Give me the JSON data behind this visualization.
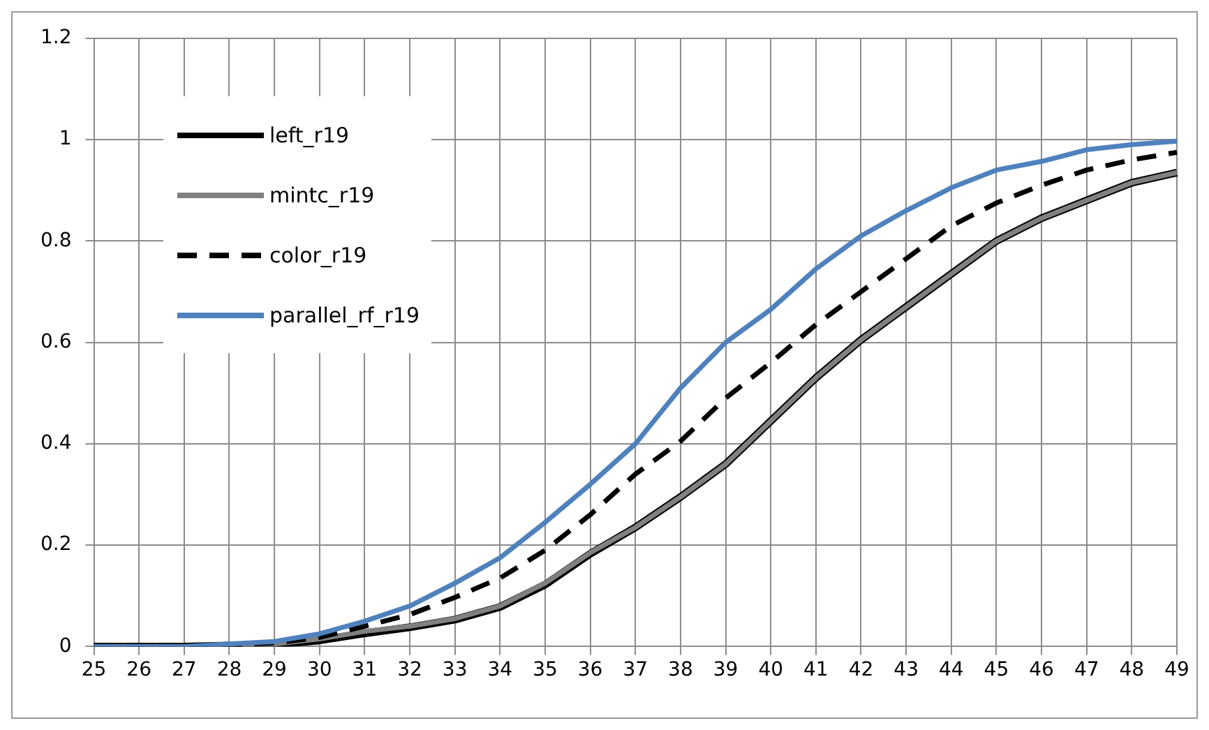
{
  "chart_data": {
    "type": "line",
    "categories": [
      "25",
      "26",
      "27",
      "28",
      "29",
      "30",
      "31",
      "32",
      "33",
      "34",
      "35",
      "36",
      "37",
      "38",
      "39",
      "40",
      "41",
      "42",
      "43",
      "44",
      "45",
      "46",
      "47",
      "48",
      "49"
    ],
    "series": [
      {
        "name": "left_r19",
        "color": "#000000",
        "line_style": "solid",
        "values": [
          0,
          0,
          0,
          0.002,
          0.004,
          0.012,
          0.026,
          0.038,
          0.053,
          0.078,
          0.122,
          0.183,
          0.235,
          0.295,
          0.36,
          0.445,
          0.53,
          0.605,
          0.67,
          0.735,
          0.8,
          0.845,
          0.88,
          0.915,
          0.935
        ]
      },
      {
        "name": "mintc_r19",
        "color": "#808080",
        "line_style": "solid",
        "values": [
          0,
          0,
          0,
          0.002,
          0.005,
          0.015,
          0.03,
          0.04,
          0.055,
          0.08,
          0.125,
          0.185,
          0.235,
          0.295,
          0.36,
          0.445,
          0.53,
          0.605,
          0.67,
          0.735,
          0.8,
          0.845,
          0.88,
          0.915,
          0.935
        ]
      },
      {
        "name": "color_r19",
        "color": "#000000",
        "line_style": "dashed",
        "values": [
          0,
          0,
          0,
          0.003,
          0.007,
          0.018,
          0.04,
          0.063,
          0.097,
          0.135,
          0.19,
          0.26,
          0.34,
          0.405,
          0.49,
          0.56,
          0.635,
          0.7,
          0.765,
          0.83,
          0.875,
          0.91,
          0.94,
          0.96,
          0.975
        ]
      },
      {
        "name": "parallel_rf_r19",
        "color": "#4f81bd",
        "line_style": "solid",
        "values": [
          0,
          0,
          0,
          0.005,
          0.01,
          0.025,
          0.05,
          0.08,
          0.125,
          0.175,
          0.245,
          0.32,
          0.4,
          0.51,
          0.6,
          0.665,
          0.745,
          0.81,
          0.86,
          0.905,
          0.94,
          0.957,
          0.98,
          0.99,
          0.997
        ]
      }
    ],
    "ylim": [
      0,
      1.2
    ],
    "yticks": [
      0,
      0.2,
      0.4,
      0.6,
      0.8,
      1,
      1.2
    ],
    "grid": true,
    "legend": "top left",
    "marker": "none"
  }
}
